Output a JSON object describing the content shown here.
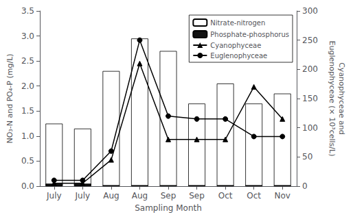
{
  "chart_data": {
    "type": "bar",
    "xlabel": "Sampling Month",
    "ylabel": "NO₃-N and PO₄-P (mg/L)",
    "y2label": "Cyanophyceae and\nEuglenophyceae (× 10³cells/L)",
    "categories": [
      "July",
      "July",
      "Aug",
      "Aug",
      "Sep",
      "Sep",
      "Oct",
      "Oct",
      "Nov"
    ],
    "series": [
      {
        "name": "Nitrate-nitrogen",
        "type": "bar",
        "color": "#ffffff",
        "values": [
          1.25,
          1.15,
          2.3,
          2.95,
          2.7,
          1.65,
          2.05,
          1.65,
          1.85
        ]
      },
      {
        "name": "Phosphate-phosphorus",
        "type": "bar",
        "color": "#111111",
        "values": [
          0.05,
          0.05,
          0.02,
          0.02,
          0.02,
          0.02,
          0.02,
          0.02,
          0.02
        ]
      },
      {
        "name": "Cyanophyceae",
        "type": "line",
        "axis": "y2",
        "color": "#000000",
        "marker": "triangle",
        "values": [
          5,
          5,
          45,
          210,
          80,
          80,
          80,
          170,
          115
        ]
      },
      {
        "name": "Euglenophyceae",
        "type": "line",
        "axis": "y2",
        "color": "#000000",
        "marker": "circle",
        "values": [
          10,
          10,
          60,
          250,
          120,
          115,
          115,
          85,
          85
        ]
      }
    ],
    "ylim": [
      0,
      3.5
    ],
    "yticks": [
      {
        "value": 0,
        "label": "0.0"
      },
      0.5,
      {
        "value": 1.0,
        "label": "1.0"
      },
      1.5,
      {
        "value": 2.0,
        "label": "2.0"
      },
      2.5,
      {
        "value": 3.0,
        "label": "3.0"
      },
      3.5
    ],
    "y2lim": [
      0,
      300
    ],
    "y2ticks": [
      0,
      50,
      100,
      150,
      200,
      250,
      300
    ],
    "grid": false,
    "legend": "upper right"
  }
}
